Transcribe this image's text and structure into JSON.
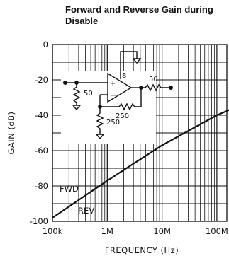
{
  "chart_data": {
    "type": "line",
    "title": "Forward and Reverse Gain during Disable",
    "xlabel": "FREQUENCY (Hz)",
    "ylabel": "GAIN (dB)",
    "x_scale": "log",
    "xlim": [
      100000,
      200000000
    ],
    "ylim": [
      -100,
      0
    ],
    "x_ticks": [
      {
        "value": 100000,
        "label": "100k"
      },
      {
        "value": 1000000,
        "label": "1M"
      },
      {
        "value": 10000000,
        "label": "10M"
      },
      {
        "value": 100000000,
        "label": "100M"
      }
    ],
    "y_ticks": [
      {
        "value": 0,
        "label": "0"
      },
      {
        "value": -20,
        "label": "-20"
      },
      {
        "value": -40,
        "label": "-40"
      },
      {
        "value": -60,
        "label": "-60"
      },
      {
        "value": -80,
        "label": "-80"
      },
      {
        "value": -100,
        "label": "-100"
      }
    ],
    "grid": true,
    "series": [
      {
        "x": [
          100000,
          1000000,
          10000000,
          100000000,
          200000000
        ],
        "y": [
          -98,
          -77,
          -57,
          -40,
          -36
        ]
      }
    ],
    "annotations": [
      {
        "text": "FWD"
      },
      {
        "text": "REV"
      }
    ],
    "inset": {
      "pin_label": "8",
      "resistors": [
        "50",
        "50",
        "250",
        "250"
      ]
    }
  }
}
